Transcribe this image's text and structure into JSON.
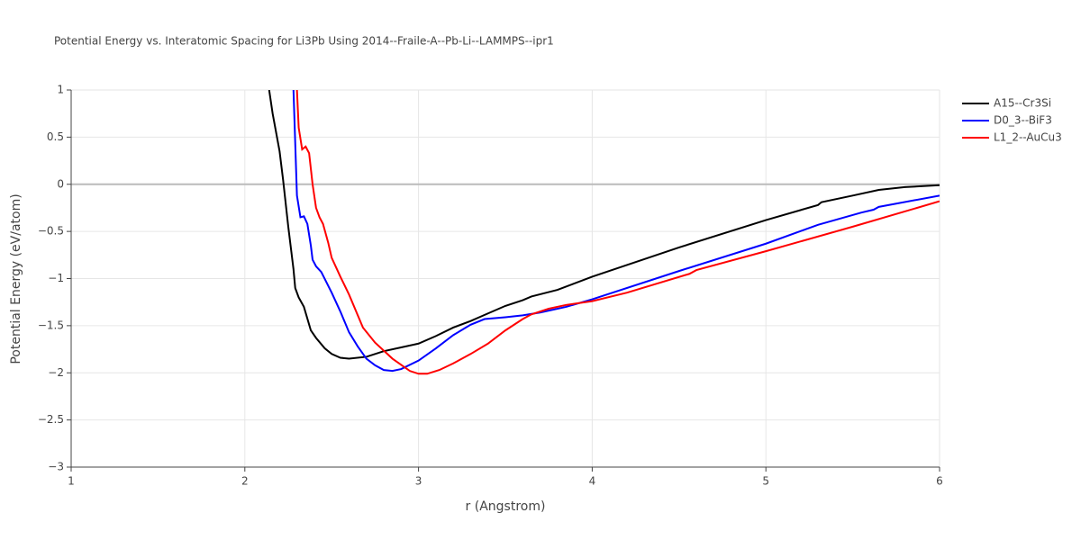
{
  "chart_data": {
    "type": "line",
    "title": "Potential Energy vs. Interatomic Spacing for Li3Pb Using 2014--Fraile-A--Pb-Li--LAMMPS--ipr1",
    "x_label": "r (Angstrom)",
    "y_label": "Potential Energy (eV/atom)",
    "xlim": [
      1,
      6
    ],
    "xticks": [
      1,
      2,
      3,
      4,
      5,
      6
    ],
    "ylim": [
      -3,
      1
    ],
    "yticks": [
      {
        "value": -3,
        "label": "−3"
      },
      {
        "value": -2.5,
        "label": "−2.5"
      },
      {
        "value": -2,
        "label": "−2"
      },
      {
        "value": -1.5,
        "label": "−1.5"
      },
      {
        "value": -1,
        "label": "−1"
      },
      {
        "value": -0.5,
        "label": "−0.5"
      },
      0,
      0.5,
      1
    ],
    "grid": true,
    "legend": "outside-right",
    "series": [
      {
        "name": "A15--Cr3Si",
        "color": "#000000",
        "x": [
          2.14,
          2.16,
          2.2,
          2.22,
          2.25,
          2.28,
          2.29,
          2.31,
          2.34,
          2.38,
          2.41,
          2.46,
          2.5,
          2.55,
          2.6,
          2.7,
          2.8,
          2.9,
          3.0,
          3.1,
          3.2,
          3.3,
          3.4,
          3.5,
          3.6,
          3.65,
          3.8,
          4.0,
          4.5,
          5.0,
          5.3,
          5.32,
          5.5,
          5.65,
          5.8,
          6.0
        ],
        "values": [
          1.0,
          0.75,
          0.35,
          0.05,
          -0.45,
          -0.9,
          -1.1,
          -1.2,
          -1.3,
          -1.55,
          -1.63,
          -1.74,
          -1.8,
          -1.84,
          -1.85,
          -1.83,
          -1.77,
          -1.73,
          -1.69,
          -1.61,
          -1.52,
          -1.45,
          -1.37,
          -1.29,
          -1.23,
          -1.19,
          -1.12,
          -0.98,
          -0.67,
          -0.38,
          -0.22,
          -0.19,
          -0.12,
          -0.06,
          -0.03,
          -0.01
        ]
      },
      {
        "name": "D0_3--BiF3",
        "color": "#0000ff",
        "x": [
          2.28,
          2.3,
          2.32,
          2.34,
          2.36,
          2.38,
          2.39,
          2.41,
          2.44,
          2.5,
          2.55,
          2.6,
          2.65,
          2.7,
          2.75,
          2.8,
          2.85,
          2.9,
          3.0,
          3.1,
          3.2,
          3.3,
          3.38,
          3.5,
          3.6,
          3.7,
          3.85,
          4.0,
          4.5,
          5.0,
          5.3,
          5.55,
          5.62,
          5.65,
          6.0
        ],
        "values": [
          1.0,
          -0.12,
          -0.35,
          -0.34,
          -0.42,
          -0.65,
          -0.8,
          -0.87,
          -0.93,
          -1.15,
          -1.35,
          -1.57,
          -1.72,
          -1.85,
          -1.92,
          -1.97,
          -1.98,
          -1.96,
          -1.87,
          -1.74,
          -1.6,
          -1.49,
          -1.43,
          -1.41,
          -1.39,
          -1.36,
          -1.3,
          -1.22,
          -0.92,
          -0.63,
          -0.43,
          -0.3,
          -0.27,
          -0.24,
          -0.12
        ]
      },
      {
        "name": "L1_2--AuCu3",
        "color": "#ff0000",
        "x": [
          2.3,
          2.31,
          2.33,
          2.35,
          2.37,
          2.39,
          2.41,
          2.43,
          2.45,
          2.48,
          2.5,
          2.55,
          2.6,
          2.68,
          2.75,
          2.85,
          2.95,
          3.0,
          3.05,
          3.12,
          3.2,
          3.3,
          3.4,
          3.5,
          3.6,
          3.65,
          3.75,
          3.85,
          4.0,
          4.2,
          4.56,
          4.6,
          5.0,
          5.5,
          6.0
        ],
        "values": [
          1.0,
          0.6,
          0.37,
          0.4,
          0.33,
          0.0,
          -0.25,
          -0.35,
          -0.42,
          -0.62,
          -0.78,
          -0.98,
          -1.17,
          -1.52,
          -1.68,
          -1.85,
          -1.98,
          -2.01,
          -2.01,
          -1.97,
          -1.9,
          -1.8,
          -1.69,
          -1.55,
          -1.43,
          -1.38,
          -1.32,
          -1.28,
          -1.24,
          -1.15,
          -0.95,
          -0.91,
          -0.71,
          -0.45,
          -0.18
        ]
      }
    ]
  }
}
